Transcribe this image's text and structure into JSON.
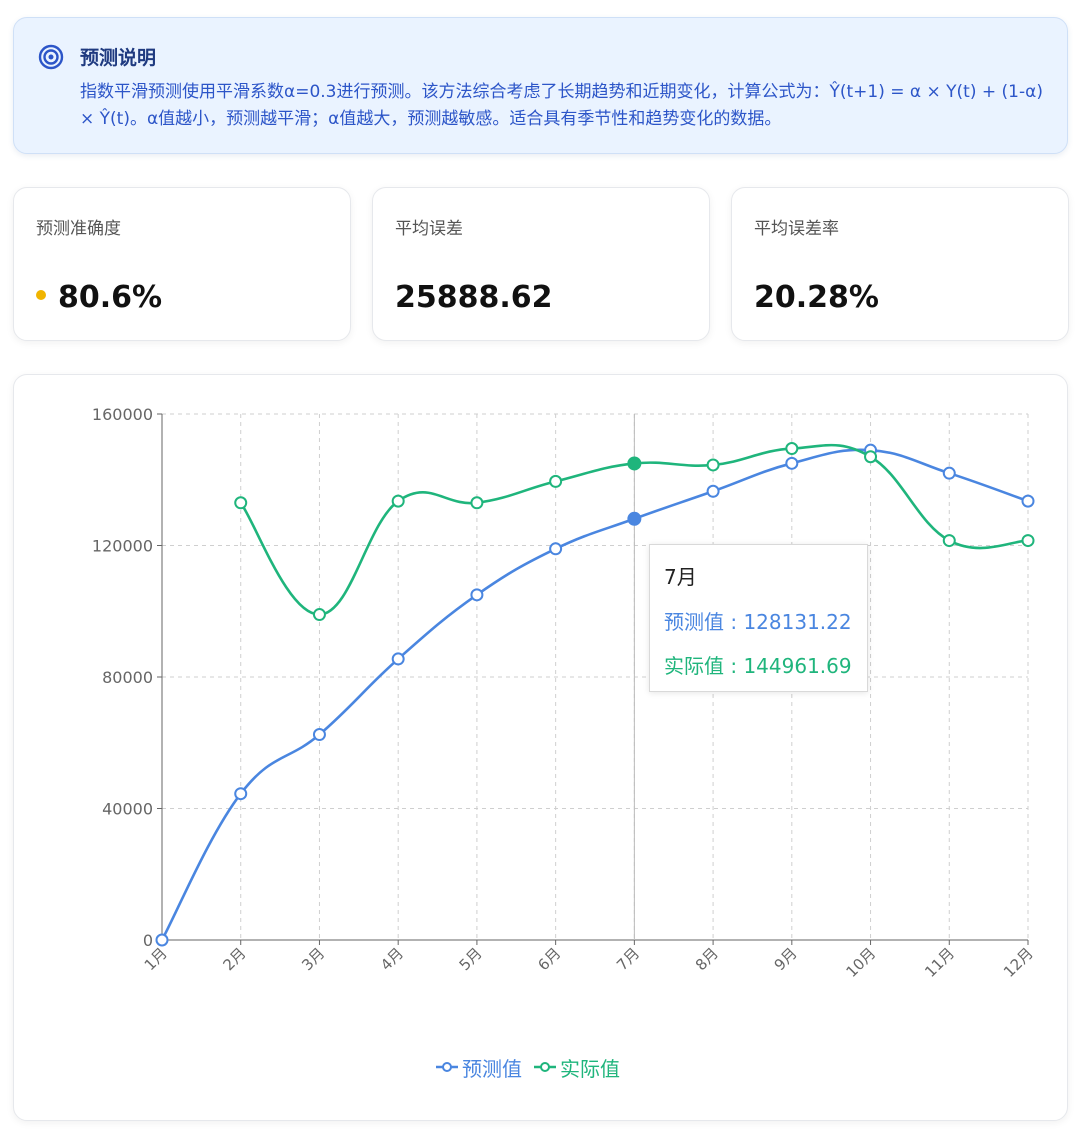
{
  "info": {
    "title": "预测说明",
    "text": "指数平滑预测使用平滑系数α=0.3进行预测。该方法综合考虑了长期趋势和近期变化，计算公式为：Ŷ(t+1) = α × Y(t) + (1-α) × Ŷ(t)。α值越小，预测越平滑；α值越大，预测越敏感。适合具有季节性和趋势变化的数据。",
    "icon": "target-icon"
  },
  "stats": [
    {
      "label": "预测准确度",
      "value": "80.6%",
      "dot_color": "#f0b400"
    },
    {
      "label": "平均误差",
      "value": "25888.62"
    },
    {
      "label": "平均误差率",
      "value": "20.28%"
    }
  ],
  "chart_data": {
    "type": "line",
    "categories": [
      "1月",
      "2月",
      "3月",
      "4月",
      "5月",
      "6月",
      "7月",
      "8月",
      "9月",
      "10月",
      "11月",
      "12月"
    ],
    "series": [
      {
        "name": "预测值",
        "color": "#4a86e0",
        "values": [
          0,
          44500,
          62500,
          85500,
          105000,
          119000,
          128131.22,
          136500,
          145000,
          149000,
          142000,
          133500
        ]
      },
      {
        "name": "实际值",
        "color": "#1fb57c",
        "values": [
          null,
          133000,
          99000,
          133500,
          133000,
          139500,
          144961.69,
          144500,
          149500,
          147000,
          121500,
          121500
        ]
      }
    ],
    "ylim": [
      0,
      160000
    ],
    "yticks": [
      0,
      40000,
      80000,
      120000,
      160000
    ],
    "grid": true,
    "legend": "bottom-center"
  },
  "tooltip": {
    "category": "7月",
    "rows": [
      {
        "label": "预测值",
        "value": "128131.22"
      },
      {
        "label": "实际值",
        "value": "144961.69"
      }
    ]
  }
}
